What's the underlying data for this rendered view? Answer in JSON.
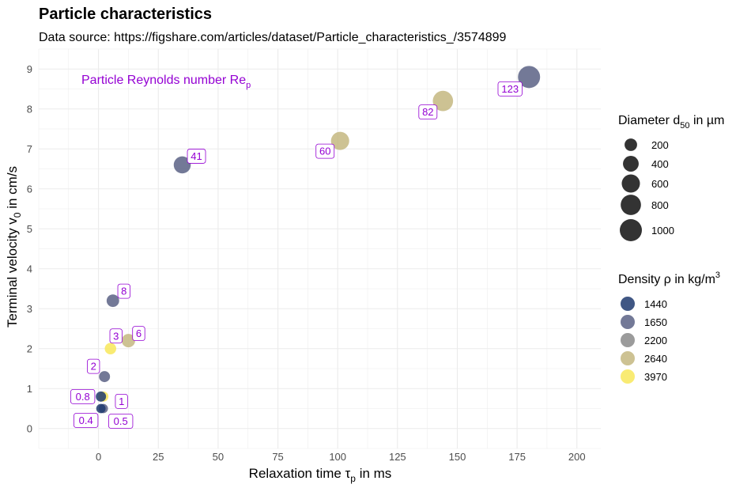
{
  "title": "Particle characteristics",
  "subtitle": "Data source: https://figshare.com/articles/dataset/Particle_characteristics_/3574899",
  "colors": {
    "label": "#9400d3",
    "grid": "#ebebeb",
    "density": {
      "1440": "#1f3a6e",
      "1650": "#5a6185",
      "2200": "#8a8a8a",
      "2640": "#c4b780",
      "3970": "#f8e85a"
    }
  },
  "chart_data": {
    "type": "scatter",
    "title": "Particle characteristics",
    "subtitle": "Data source: https://figshare.com/articles/dataset/Particle_characteristics_/3574899",
    "xlabel": {
      "main": "Relaxation time τ",
      "sub": "p",
      "tail": " in ms"
    },
    "ylabel": {
      "main": "Terminal velocity v",
      "sub": "0",
      "tail": " in cm/s"
    },
    "xlim": [
      -25,
      210
    ],
    "ylim": [
      -0.5,
      9.5
    ],
    "xticks": [
      0,
      25,
      50,
      75,
      100,
      125,
      150,
      175,
      200
    ],
    "yticks": [
      0,
      1,
      2,
      3,
      4,
      5,
      6,
      7,
      8,
      9
    ],
    "grid": true,
    "annotation": {
      "main": "Particle Reynolds number Re",
      "sub": "p"
    },
    "points": [
      {
        "x": 180,
        "y": 8.8,
        "d": 1000,
        "rho": 1650,
        "re": "123"
      },
      {
        "x": 144,
        "y": 8.2,
        "d": 800,
        "rho": 2640,
        "re": "82"
      },
      {
        "x": 101,
        "y": 7.2,
        "d": 600,
        "rho": 2640,
        "re": "60"
      },
      {
        "x": 35,
        "y": 6.6,
        "d": 500,
        "rho": 1650,
        "re": "41"
      },
      {
        "x": 6,
        "y": 3.2,
        "d": 200,
        "rho": 1650,
        "re": "8"
      },
      {
        "x": 12.5,
        "y": 2.2,
        "d": 250,
        "rho": 2640,
        "re": "6"
      },
      {
        "x": 5,
        "y": 2.0,
        "d": 150,
        "rho": 3970,
        "re": "3"
      },
      {
        "x": 2.5,
        "y": 1.3,
        "d": 130,
        "rho": 1650,
        "re": "2"
      },
      {
        "x": 2,
        "y": 0.8,
        "d": 100,
        "rho": 3970,
        "re": "1"
      },
      {
        "x": 1,
        "y": 0.8,
        "d": 100,
        "rho": 1440,
        "re": "0.8"
      },
      {
        "x": 2,
        "y": 0.5,
        "d": 70,
        "rho": 1650,
        "re": "0.5"
      },
      {
        "x": 1,
        "y": 0.5,
        "d": 70,
        "rho": 1440,
        "re": "0.4"
      }
    ],
    "legend_size": {
      "title": {
        "main": "Diameter d",
        "sub": "50",
        "tail": " in µm"
      },
      "values": [
        200,
        400,
        600,
        800,
        1000
      ]
    },
    "legend_color": {
      "title": {
        "main": "Density ρ in kg/m",
        "sup": "3"
      },
      "values": [
        1440,
        1650,
        2200,
        2640,
        3970
      ]
    }
  }
}
